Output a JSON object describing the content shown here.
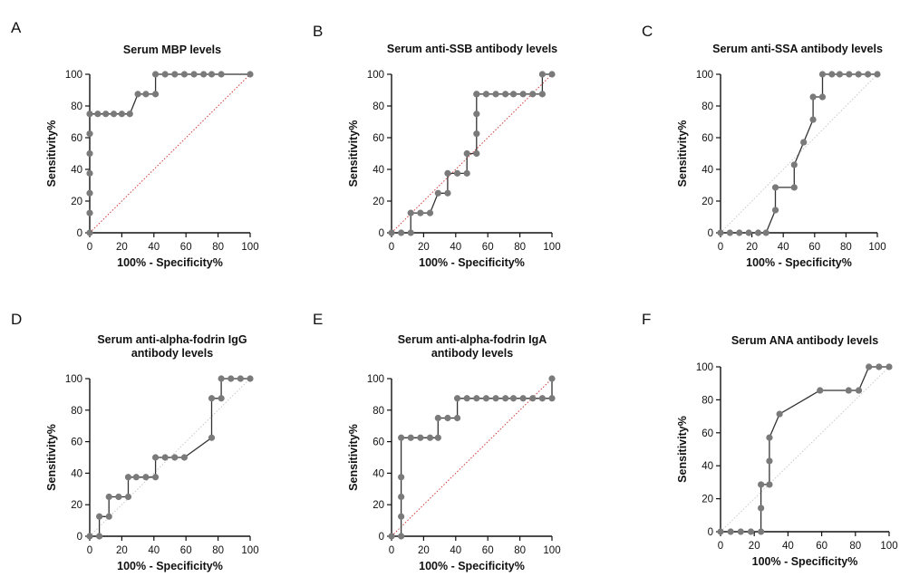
{
  "chart_data": [
    {
      "type": "line",
      "panel": "A",
      "title": "Serum MBP levels",
      "xlabel": "100% - Specificity%",
      "ylabel": "Sensitivity%",
      "xlim": [
        0,
        100
      ],
      "ylim": [
        0,
        100
      ],
      "xticks": [
        "0",
        "20",
        "40",
        "60",
        "80",
        "100"
      ],
      "yticks": [
        "0",
        "20",
        "40",
        "60",
        "80",
        "100"
      ],
      "grid": false,
      "reference_line": {
        "style": "red-dotted",
        "x": [
          0,
          100
        ],
        "y": [
          0,
          100
        ]
      },
      "series": [
        {
          "x": [
            0,
            0,
            0,
            0,
            0,
            0,
            0,
            5,
            10,
            15,
            20,
            25,
            30,
            35,
            41,
            41,
            47,
            53,
            59,
            65,
            71,
            76,
            82,
            100
          ],
          "y": [
            0,
            12.5,
            25,
            37.5,
            50,
            62.5,
            75,
            75,
            75,
            75,
            75,
            75,
            87.5,
            87.5,
            87.5,
            100,
            100,
            100,
            100,
            100,
            100,
            100,
            100,
            100
          ]
        }
      ]
    },
    {
      "type": "line",
      "panel": "B",
      "title": "Serum anti-SSB antibody levels",
      "xlabel": "100% - Specificity%",
      "ylabel": "Sensitivity%",
      "xlim": [
        0,
        100
      ],
      "ylim": [
        0,
        100
      ],
      "xticks": [
        "0",
        "20",
        "40",
        "60",
        "80",
        "100"
      ],
      "yticks": [
        "0",
        "20",
        "40",
        "60",
        "80",
        "100"
      ],
      "grid": false,
      "reference_line": {
        "style": "red-dotted",
        "x": [
          0,
          100
        ],
        "y": [
          0,
          100
        ]
      },
      "series": [
        {
          "x": [
            0,
            6,
            12,
            12,
            18,
            24,
            29,
            35,
            35,
            41,
            47,
            47,
            53,
            53,
            53,
            53,
            53,
            59,
            65,
            71,
            76,
            82,
            88,
            94,
            94,
            100
          ],
          "y": [
            0,
            0,
            0,
            12.5,
            12.5,
            12.5,
            25,
            25,
            37.5,
            37.5,
            37.5,
            50,
            50,
            62.5,
            75,
            87.5,
            87.5,
            87.5,
            87.5,
            87.5,
            87.5,
            87.5,
            87.5,
            87.5,
            100,
            100
          ]
        }
      ]
    },
    {
      "type": "line",
      "panel": "C",
      "title": "Serum anti-SSA antibody levels",
      "xlabel": "100% - Specificity%",
      "ylabel": "Sensitivity%",
      "xlim": [
        0,
        100
      ],
      "ylim": [
        0,
        100
      ],
      "xticks": [
        "0",
        "20",
        "40",
        "60",
        "80",
        "100"
      ],
      "yticks": [
        "0",
        "20",
        "40",
        "60",
        "80",
        "100"
      ],
      "grid": false,
      "reference_line": {
        "style": "grey-dotted",
        "x": [
          0,
          100
        ],
        "y": [
          0,
          100
        ]
      },
      "series": [
        {
          "x": [
            0,
            6,
            12,
            18,
            24,
            29,
            35,
            35,
            47,
            47,
            53,
            59,
            59,
            65,
            65,
            71,
            76,
            82,
            88,
            94,
            100
          ],
          "y": [
            0,
            0,
            0,
            0,
            0,
            0,
            14.3,
            28.6,
            28.6,
            42.9,
            57.1,
            71.4,
            85.7,
            85.7,
            100,
            100,
            100,
            100,
            100,
            100,
            100
          ]
        }
      ]
    },
    {
      "type": "line",
      "panel": "D",
      "title": "Serum anti-alpha-fodrin IgG antibody levels",
      "title_lines": [
        "Serum anti-alpha-fodrin IgG",
        "antibody levels"
      ],
      "xlabel": "100% - Specificity%",
      "ylabel": "Sensitivity%",
      "xlim": [
        0,
        100
      ],
      "ylim": [
        0,
        100
      ],
      "xticks": [
        "0",
        "20",
        "40",
        "60",
        "80",
        "100"
      ],
      "yticks": [
        "0",
        "20",
        "40",
        "60",
        "80",
        "100"
      ],
      "grid": false,
      "reference_line": {
        "style": "grey-dotted",
        "x": [
          0,
          100
        ],
        "y": [
          0,
          100
        ]
      },
      "series": [
        {
          "x": [
            0,
            6,
            6,
            12,
            12,
            18,
            24,
            24,
            29,
            35,
            41,
            41,
            47,
            53,
            59,
            76,
            76,
            82,
            82,
            88,
            94,
            100
          ],
          "y": [
            0,
            0,
            12.5,
            12.5,
            25,
            25,
            25,
            37.5,
            37.5,
            37.5,
            37.5,
            50,
            50,
            50,
            50,
            62.5,
            87.5,
            87.5,
            100,
            100,
            100,
            100
          ]
        }
      ]
    },
    {
      "type": "line",
      "panel": "E",
      "title": "Serum anti-alpha-fodrin IgA antibody levels",
      "title_lines": [
        "Serum anti-alpha-fodrin IgA",
        "antibody levels"
      ],
      "xlabel": "100% - Specificity%",
      "ylabel": "Sensitivity%",
      "xlim": [
        0,
        100
      ],
      "ylim": [
        0,
        100
      ],
      "xticks": [
        "0",
        "20",
        "40",
        "60",
        "80",
        "100"
      ],
      "yticks": [
        "0",
        "20",
        "40",
        "60",
        "80",
        "100"
      ],
      "grid": false,
      "reference_line": {
        "style": "red-dotted",
        "x": [
          0,
          100
        ],
        "y": [
          0,
          100
        ]
      },
      "series": [
        {
          "x": [
            0,
            6,
            6,
            6,
            6,
            6,
            12,
            18,
            24,
            29,
            29,
            35,
            41,
            41,
            47,
            53,
            59,
            65,
            71,
            76,
            82,
            88,
            94,
            100,
            100
          ],
          "y": [
            0,
            0,
            12.5,
            25,
            37.5,
            62.5,
            62.5,
            62.5,
            62.5,
            62.5,
            75,
            75,
            75,
            87.5,
            87.5,
            87.5,
            87.5,
            87.5,
            87.5,
            87.5,
            87.5,
            87.5,
            87.5,
            87.5,
            100
          ]
        }
      ]
    },
    {
      "type": "line",
      "panel": "F",
      "title": "Serum ANA antibody levels",
      "xlabel": "100% - Specificity%",
      "ylabel": "Sensitivity%",
      "xlim": [
        0,
        100
      ],
      "ylim": [
        0,
        100
      ],
      "xticks": [
        "0",
        "20",
        "40",
        "60",
        "80",
        "100"
      ],
      "yticks": [
        "0",
        "20",
        "40",
        "60",
        "80",
        "100"
      ],
      "grid": false,
      "reference_line": {
        "style": "grey-dotted",
        "x": [
          0,
          100
        ],
        "y": [
          0,
          100
        ]
      },
      "series": [
        {
          "x": [
            0,
            6,
            12,
            18,
            24,
            24,
            24,
            29,
            29,
            29,
            35,
            59,
            76,
            82,
            88,
            94,
            100
          ],
          "y": [
            0,
            0,
            0,
            0,
            0,
            14.3,
            28.6,
            28.6,
            42.9,
            57.1,
            71.4,
            85.7,
            85.7,
            85.7,
            100,
            100,
            100
          ]
        }
      ]
    }
  ],
  "colors": {
    "marker": "#7a7a7a",
    "curve": "#333333",
    "axis": "#111111",
    "ref_red": "#d33a3a",
    "ref_grey": "#c9c9c9"
  }
}
